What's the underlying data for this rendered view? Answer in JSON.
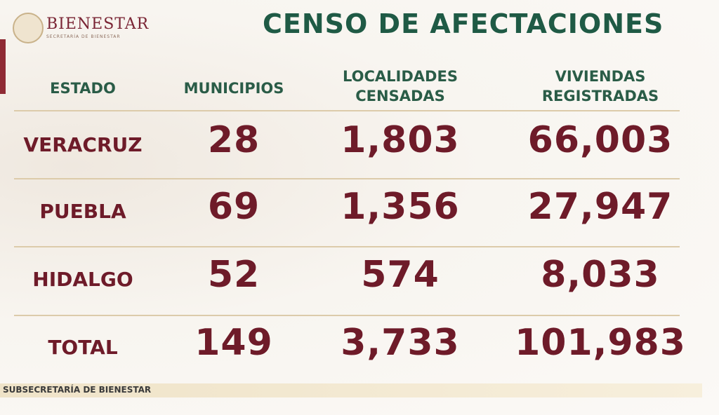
{
  "header": {
    "logo_title": "BIENESTAR",
    "logo_subtitle": "SECRETARÍA DE BIENESTAR",
    "title": "CENSO DE AFECTACIONES"
  },
  "table": {
    "columns": [
      "ESTADO",
      "MUNICIPIOS",
      "LOCALIDADES CENSADAS",
      "VIVIENDAS REGISTRADAS"
    ],
    "rows": [
      [
        "VERACRUZ",
        "28",
        "1,803",
        "66,003"
      ],
      [
        "PUEBLA",
        "69",
        "1,356",
        "27,947"
      ],
      [
        "HIDALGO",
        "52",
        "574",
        "8,033"
      ],
      [
        "TOTAL",
        "149",
        "3,733",
        "101,983"
      ]
    ]
  },
  "footer": {
    "text": "SUBSECRETARÍA DE BIENESTAR"
  }
}
